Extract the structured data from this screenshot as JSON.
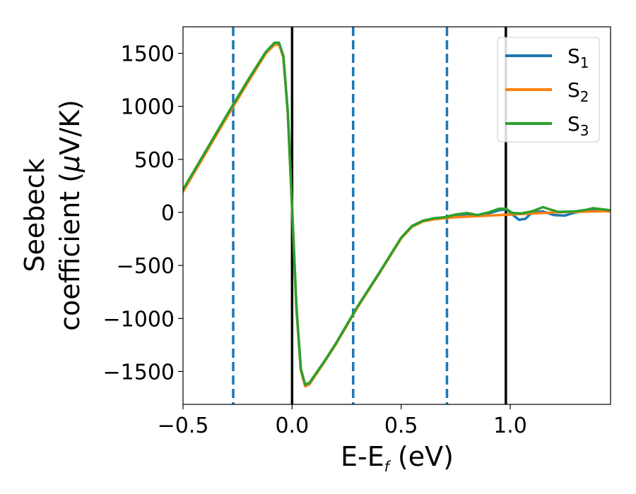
{
  "chart_data": {
    "type": "line",
    "xlabel": "E-E",
    "xlabel_sub": "f",
    "xlabel_unit": " (eV)",
    "ylabel_line1": "Seebeck",
    "ylabel_line2": "coefficient  (",
    "ylabel_mu": "μ",
    "ylabel_unit": "V/K)",
    "xlim": [
      -0.5,
      1.46
    ],
    "ylim": [
      -1810,
      1750
    ],
    "xticks": [
      -0.5,
      0.0,
      0.5,
      1.0
    ],
    "xtick_labels": [
      "−0.5",
      "0.0",
      "0.5",
      "1.0"
    ],
    "yticks": [
      -1500,
      -1000,
      -500,
      0,
      500,
      1000,
      1500
    ],
    "ytick_labels": [
      "−1500",
      "−1000",
      "−500",
      "0",
      "500",
      "1000",
      "1500"
    ],
    "grid": false,
    "legend_position": "top-right",
    "vlines_dashed": {
      "x": [
        -0.27,
        0.28,
        0.71
      ],
      "color": "#1f77b4"
    },
    "vlines_solid": {
      "x": [
        0.0,
        0.98
      ],
      "color": "#000000"
    },
    "series": [
      {
        "name": "S",
        "sub": "1",
        "color": "#1f77b4",
        "points": [
          [
            -0.5,
            210
          ],
          [
            -0.4,
            560
          ],
          [
            -0.3,
            910
          ],
          [
            -0.2,
            1250
          ],
          [
            -0.12,
            1510
          ],
          [
            -0.08,
            1590
          ],
          [
            -0.06,
            1595
          ],
          [
            -0.04,
            1470
          ],
          [
            -0.02,
            950
          ],
          [
            0.0,
            50
          ],
          [
            0.02,
            -900
          ],
          [
            0.04,
            -1480
          ],
          [
            0.06,
            -1630
          ],
          [
            0.08,
            -1610
          ],
          [
            0.15,
            -1400
          ],
          [
            0.2,
            -1240
          ],
          [
            0.3,
            -890
          ],
          [
            0.4,
            -570
          ],
          [
            0.5,
            -240
          ],
          [
            0.55,
            -130
          ],
          [
            0.6,
            -80
          ],
          [
            0.65,
            -60
          ],
          [
            0.7,
            -50
          ],
          [
            0.75,
            -35
          ],
          [
            0.8,
            -15
          ],
          [
            0.85,
            -30
          ],
          [
            0.9,
            -10
          ],
          [
            0.95,
            20
          ],
          [
            0.98,
            30
          ],
          [
            1.01,
            -20
          ],
          [
            1.04,
            -70
          ],
          [
            1.07,
            -60
          ],
          [
            1.1,
            0
          ],
          [
            1.15,
            10
          ],
          [
            1.2,
            -25
          ],
          [
            1.25,
            -30
          ],
          [
            1.3,
            0
          ],
          [
            1.35,
            20
          ],
          [
            1.4,
            30
          ],
          [
            1.46,
            20
          ]
        ]
      },
      {
        "name": "S",
        "sub": "2",
        "color": "#ff7f0e",
        "points": [
          [
            -0.5,
            195
          ],
          [
            -0.4,
            545
          ],
          [
            -0.3,
            895
          ],
          [
            -0.2,
            1235
          ],
          [
            -0.12,
            1500
          ],
          [
            -0.08,
            1580
          ],
          [
            -0.06,
            1585
          ],
          [
            -0.04,
            1460
          ],
          [
            -0.02,
            940
          ],
          [
            0.0,
            40
          ],
          [
            0.02,
            -910
          ],
          [
            0.04,
            -1490
          ],
          [
            0.06,
            -1640
          ],
          [
            0.08,
            -1620
          ],
          [
            0.15,
            -1405
          ],
          [
            0.2,
            -1245
          ],
          [
            0.3,
            -895
          ],
          [
            0.4,
            -575
          ],
          [
            0.5,
            -245
          ],
          [
            0.55,
            -135
          ],
          [
            0.6,
            -85
          ],
          [
            0.65,
            -65
          ],
          [
            0.7,
            -55
          ],
          [
            0.75,
            -45
          ],
          [
            0.8,
            -40
          ],
          [
            0.85,
            -35
          ],
          [
            0.9,
            -30
          ],
          [
            0.95,
            -25
          ],
          [
            1.0,
            -20
          ],
          [
            1.05,
            -15
          ],
          [
            1.1,
            -10
          ],
          [
            1.2,
            0
          ],
          [
            1.3,
            5
          ],
          [
            1.4,
            10
          ],
          [
            1.46,
            10
          ]
        ]
      },
      {
        "name": "S",
        "sub": "3",
        "color": "#2ca02c",
        "points": [
          [
            -0.5,
            215
          ],
          [
            -0.4,
            565
          ],
          [
            -0.3,
            915
          ],
          [
            -0.2,
            1255
          ],
          [
            -0.12,
            1515
          ],
          [
            -0.08,
            1600
          ],
          [
            -0.06,
            1600
          ],
          [
            -0.04,
            1475
          ],
          [
            -0.02,
            955
          ],
          [
            0.0,
            55
          ],
          [
            0.02,
            -895
          ],
          [
            0.04,
            -1475
          ],
          [
            0.06,
            -1625
          ],
          [
            0.08,
            -1605
          ],
          [
            0.15,
            -1398
          ],
          [
            0.2,
            -1238
          ],
          [
            0.3,
            -888
          ],
          [
            0.4,
            -568
          ],
          [
            0.5,
            -238
          ],
          [
            0.55,
            -128
          ],
          [
            0.6,
            -78
          ],
          [
            0.65,
            -55
          ],
          [
            0.7,
            -45
          ],
          [
            0.75,
            -20
          ],
          [
            0.8,
            -5
          ],
          [
            0.85,
            -25
          ],
          [
            0.9,
            0
          ],
          [
            0.95,
            35
          ],
          [
            0.98,
            35
          ],
          [
            1.01,
            -5
          ],
          [
            1.05,
            -10
          ],
          [
            1.1,
            10
          ],
          [
            1.15,
            50
          ],
          [
            1.18,
            30
          ],
          [
            1.22,
            5
          ],
          [
            1.3,
            10
          ],
          [
            1.35,
            25
          ],
          [
            1.38,
            40
          ],
          [
            1.42,
            30
          ],
          [
            1.46,
            20
          ]
        ]
      }
    ]
  }
}
